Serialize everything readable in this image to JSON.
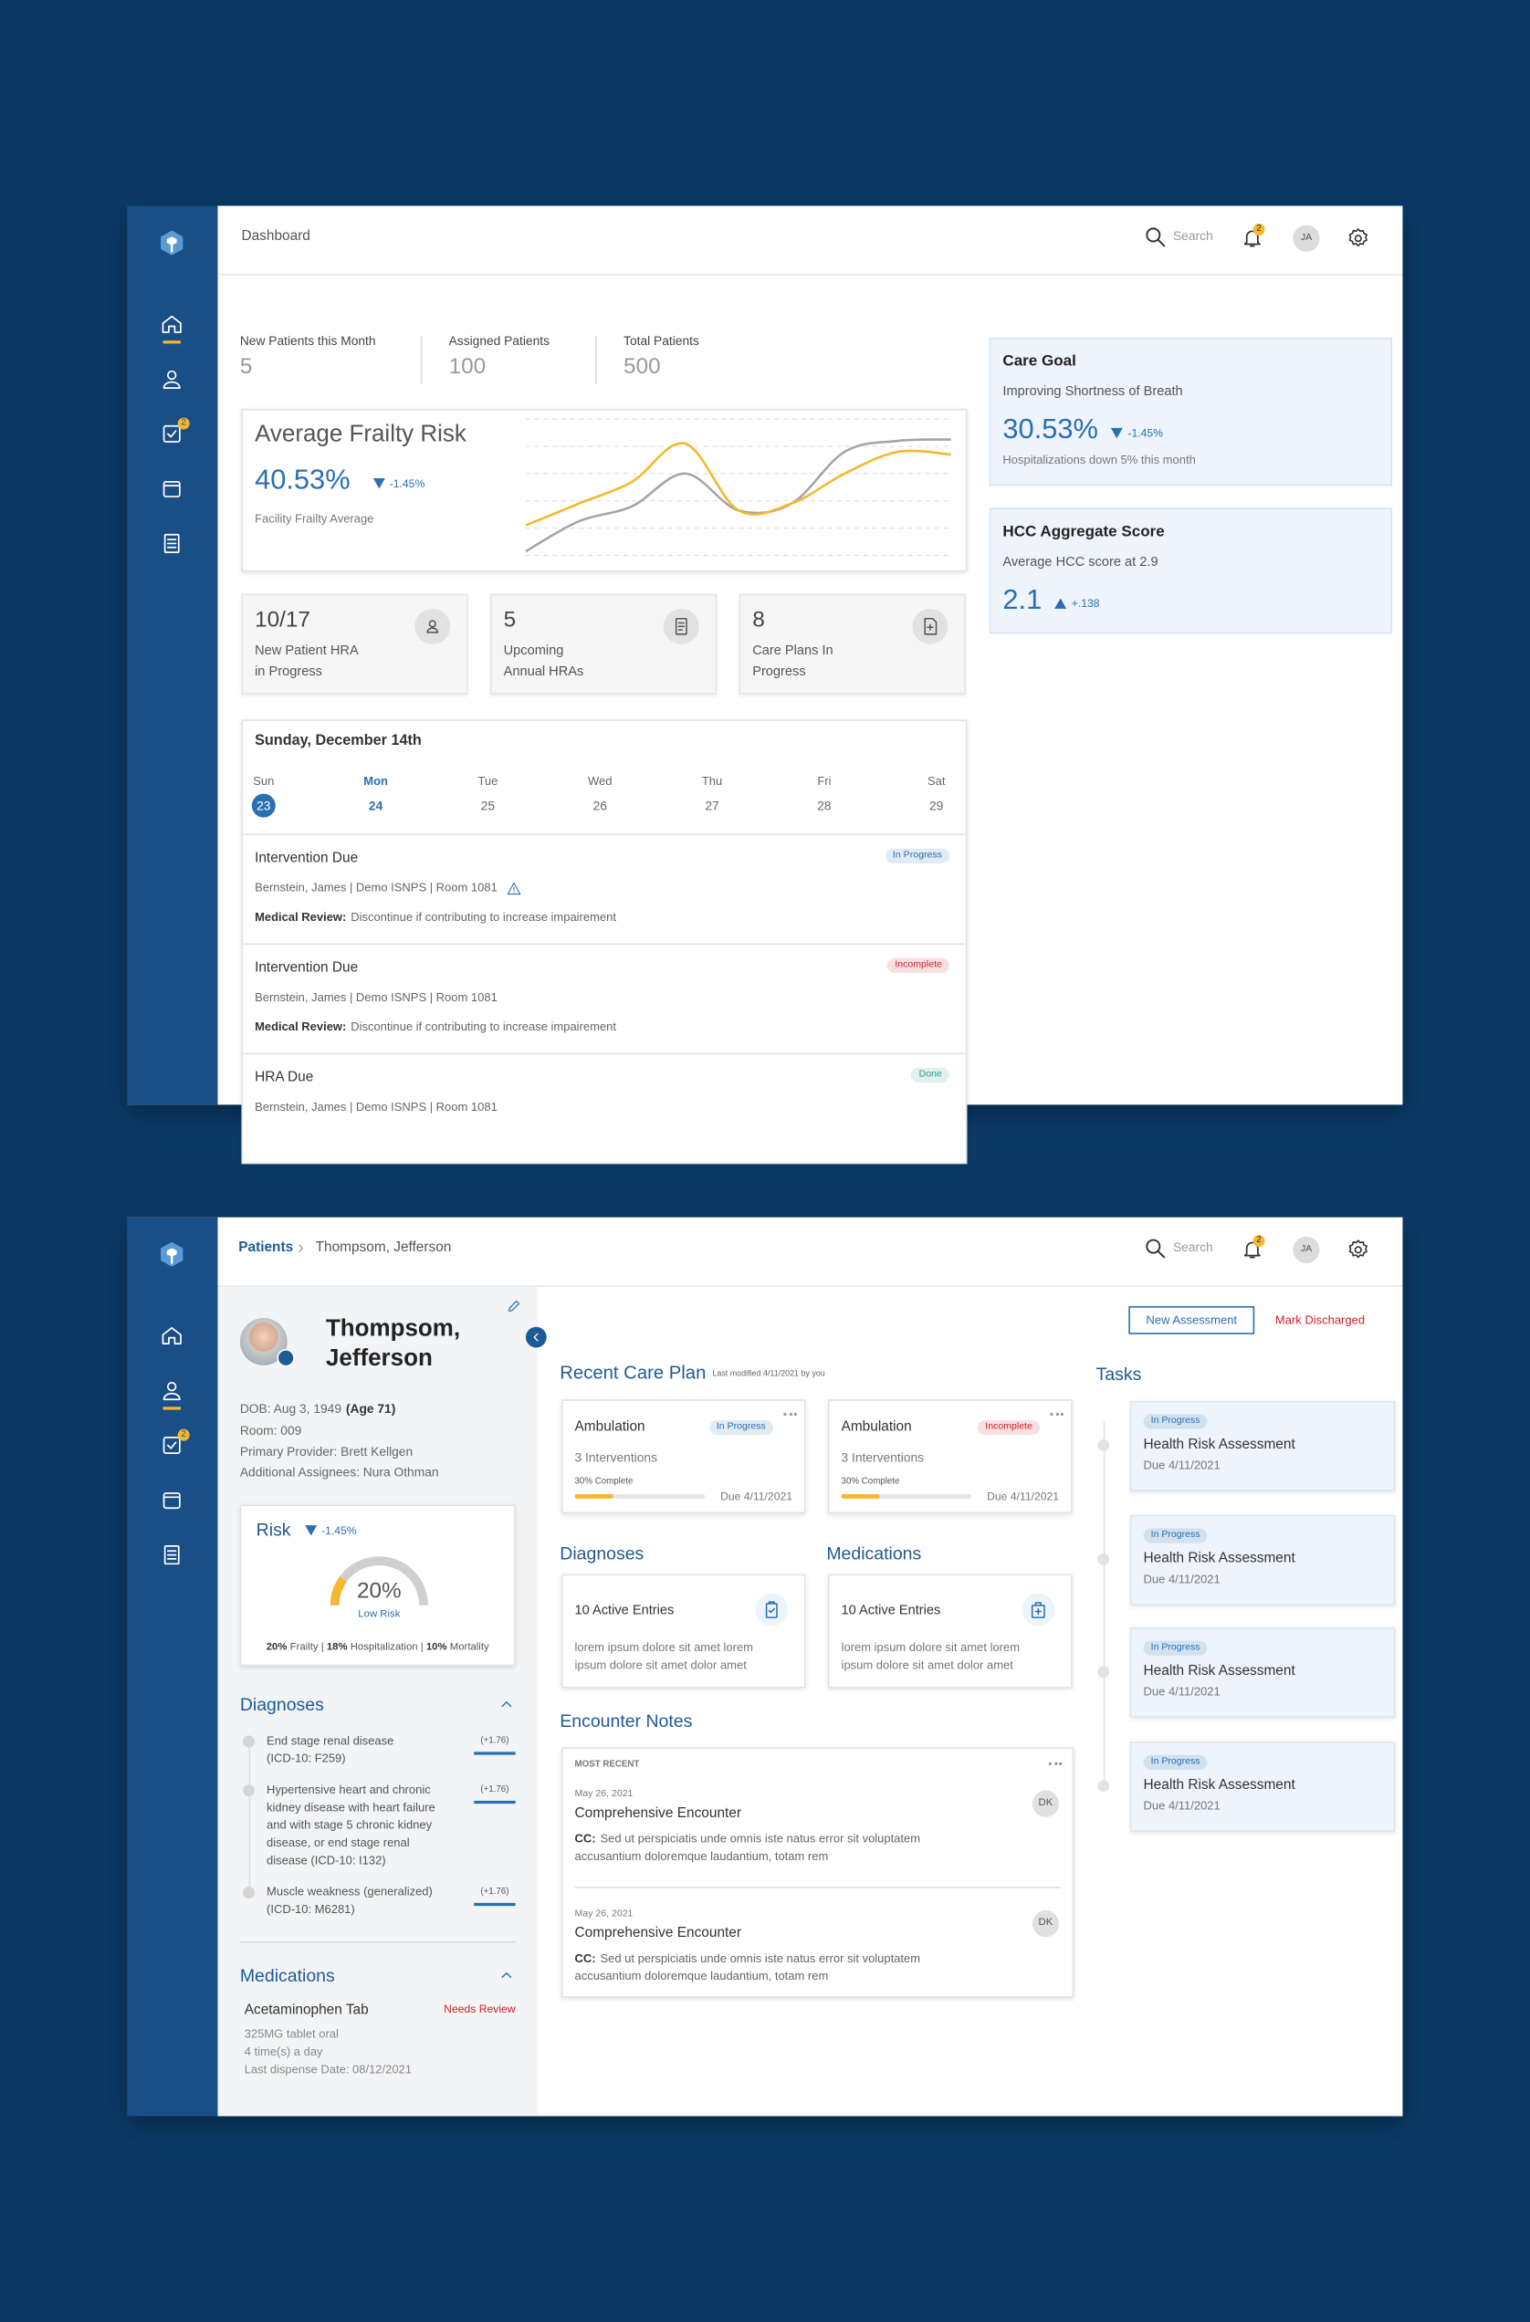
{
  "dashboard": {
    "sidebar_badge": "2",
    "header": {
      "title": "Dashboard",
      "search": "Search",
      "notifications": "2",
      "avatar": "JA"
    },
    "stats": [
      {
        "label": "New Patients this Month",
        "value": "5"
      },
      {
        "label": "Assigned Patients",
        "value": "100"
      },
      {
        "label": "Total Patients",
        "value": "500"
      }
    ],
    "frailty": {
      "title": "Average Frailty Risk",
      "value": "40.53%",
      "change": "-1.45%",
      "caption": "Facility Frailty Average",
      "chart": {
        "type": "line",
        "ylim": [
          0,
          100
        ],
        "series": [
          {
            "color": "#a5a5a8",
            "values": [
              3,
              25,
              36,
              60,
              33,
              38,
              76,
              84,
              85
            ]
          },
          {
            "color": "#f5b82e",
            "values": [
              22,
              38,
              54,
              82,
              33,
              38,
              60,
              76,
              74
            ]
          }
        ]
      }
    },
    "summary_cards": [
      {
        "value": "10/17",
        "label": [
          "New Patient HRA",
          "in Progress"
        ]
      },
      {
        "value": "5",
        "label": [
          "Upcoming",
          "Annual HRAs"
        ]
      },
      {
        "value": "8",
        "label": [
          "Care Plans In",
          "Progress"
        ]
      }
    ],
    "calendar": {
      "title": "Sunday, December 14th",
      "days": [
        {
          "name": "Sun",
          "date": "23",
          "selected": true
        },
        {
          "name": "Mon",
          "date": "24",
          "today": true
        },
        {
          "name": "Tue",
          "date": "25"
        },
        {
          "name": "Wed",
          "date": "26"
        },
        {
          "name": "Thu",
          "date": "27"
        },
        {
          "name": "Fri",
          "date": "28"
        },
        {
          "name": "Sat",
          "date": "29"
        }
      ]
    },
    "events": [
      {
        "title": "Intervention Due",
        "status": "In Progress",
        "status_color": "#2a6fb2",
        "detail": "Bernstein, James | Demo ISNPS | Room 1081",
        "warning": true,
        "review_label": "Medical Review:",
        "review": "Discontinue if contributing to increase impairement"
      },
      {
        "title": "Intervention Due",
        "status": "Incomplete",
        "status_color": "#d0202a",
        "detail": "Bernstein, James | Demo ISNPS | Room 1081",
        "review_label": "Medical Review:",
        "review": "Discontinue if contributing to increase impairement"
      },
      {
        "title": "HRA Due",
        "status": "Done",
        "status_color": "#2f9c88",
        "detail": "Bernstein, James | Demo ISNPS | Room 1081"
      }
    ],
    "care_goal": {
      "title": "Care Goal",
      "subtitle": "Improving Shortness of Breath",
      "value": "30.53%",
      "change": "-1.45%",
      "caption": "Hospitalizations down 5% this month"
    },
    "hcc": {
      "title": "HCC Aggregate Score",
      "subtitle": "Average HCC score at 2.9",
      "value": "2.1",
      "change": "+.138"
    }
  },
  "patient": {
    "sidebar_badge": "2",
    "header": {
      "crumb": "Patients",
      "title": "Thompsom, Jefferson",
      "search": "Search",
      "notifications": "2",
      "avatar": "JA"
    },
    "name": [
      "Thompsom,",
      "Jefferson"
    ],
    "dob": "DOB: Aug 3, 1949",
    "age": "(Age 71)",
    "room": "Room: 009",
    "provider": "Primary Provider: Brett Kellgen",
    "assignees": "Additional Assignees: Nura Othman",
    "risk": {
      "title": "Risk",
      "change": "-1.45%",
      "gauge": {
        "value": 20,
        "label": "20%",
        "lim": [
          0,
          100
        ]
      },
      "level": "Low Risk",
      "breakdown": [
        "20%",
        " Frailty | ",
        "18%",
        " Hospitalization | ",
        "10%",
        " Mortality"
      ]
    },
    "diagnoses": {
      "title": "Diagnoses",
      "items": [
        {
          "lines": [
            "End stage renal disease",
            "(ICD-10: F259)"
          ],
          "score": "(+1.76)"
        },
        {
          "lines": [
            "Hypertensive heart and chronic",
            "kidney disease with heart failure",
            "and with stage 5 chronic kidney",
            "disease, or end stage renal",
            "disease (ICD-10: I132)"
          ],
          "score": "(+1.76)"
        },
        {
          "lines": [
            "Muscle weakness (generalized)",
            "(ICD-10: M6281)"
          ],
          "score": "(+1.76)"
        }
      ]
    },
    "medications": {
      "title": "Medications",
      "item": {
        "name": "Acetaminophen Tab",
        "status": "Needs Review",
        "lines": [
          "325MG tablet oral",
          "4 time(s) a day",
          "Last dispense Date: 08/12/2021"
        ]
      }
    },
    "actions": {
      "new": "New Assessment",
      "discharge": "Mark Discharged"
    },
    "care_plan": {
      "title": "Recent Care Plan",
      "modified": "Last modified 4/11/2021 by you",
      "cards": [
        {
          "title": "Ambulation",
          "status": "In Progress",
          "status_color": "#2a6fb2",
          "interventions": "3 Interventions",
          "progress": 30,
          "progress_label": "30% Complete",
          "due": "Due 4/11/2021"
        },
        {
          "title": "Ambulation",
          "status": "Incomplete",
          "status_color": "#d0202a",
          "interventions": "3 Interventions",
          "progress": 30,
          "progress_label": "30% Complete",
          "due": "Due 4/11/2021"
        }
      ]
    },
    "summaries": [
      {
        "title": "Diagnoses",
        "entries": "10 Active Entries",
        "lines": [
          "lorem ipsum dolore sit amet lorem",
          "ipsum dolore sit amet dolor amet"
        ]
      },
      {
        "title": "Medications",
        "entries": "10 Active Entries",
        "lines": [
          "lorem ipsum dolore sit amet lorem",
          "ipsum dolore sit amet dolor amet"
        ]
      }
    ],
    "encounters": {
      "title": "Encounter Notes",
      "section": "MOST RECENT",
      "notes": [
        {
          "date": "May 26, 2021",
          "title": "Comprehensive Encounter",
          "cc_label": "CC:",
          "lines": [
            "Sed ut perspiciatis unde omnis iste natus error sit voluptatem",
            "accusantium doloremque laudantium, totam rem"
          ],
          "initials": "DK"
        },
        {
          "date": "May 26, 2021",
          "title": "Comprehensive Encounter",
          "cc_label": "CC:",
          "lines": [
            "Sed ut perspiciatis unde omnis iste natus error sit voluptatem",
            "accusantium doloremque laudantium, totam rem"
          ],
          "initials": "DK"
        }
      ]
    },
    "tasks": {
      "title": "Tasks",
      "items": [
        {
          "status": "In Progress",
          "status_color": "#2a6fb2",
          "title": "Health Risk Assessment",
          "due": "Due 4/11/2021"
        },
        {
          "status": "In Progress",
          "status_color": "#2a6fb2",
          "title": "Health Risk Assessment",
          "due": "Due 4/11/2021"
        },
        {
          "status": "In Progress",
          "status_color": "#2a6fb2",
          "title": "Health Risk Assessment",
          "due": "Due 4/11/2021"
        },
        {
          "status": "In Progress",
          "status_color": "#2a6fb2",
          "title": "Health Risk Assessment",
          "due": "Due 4/11/2021"
        }
      ]
    }
  }
}
